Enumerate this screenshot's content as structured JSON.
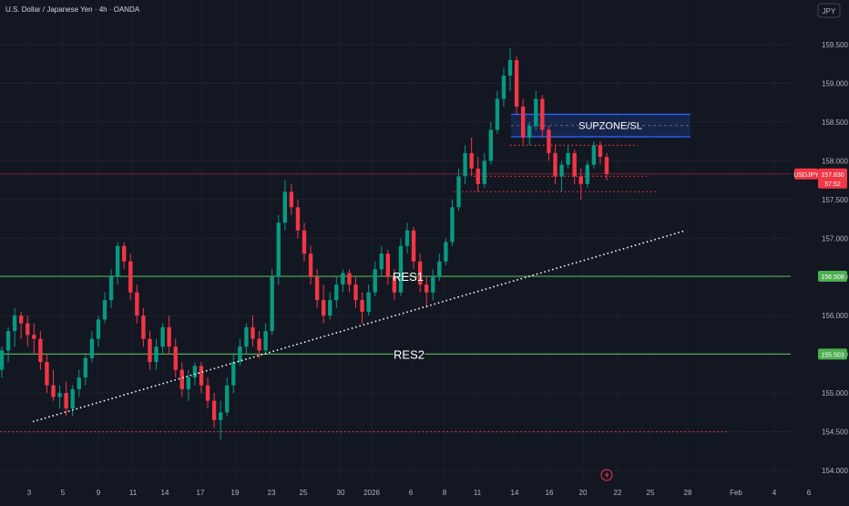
{
  "header": {
    "symbol_title": "U.S. Dollar / Japanese Yen · 4h · OANDA"
  },
  "currency_button": "JPY",
  "chart_data": {
    "type": "candlestick",
    "symbol": "USDJPY",
    "timeframe": "4h",
    "y_ticks": [
      "159.500",
      "159.000",
      "158.500",
      "158.000",
      "157.500",
      "157.000",
      "156.500",
      "156.000",
      "155.500",
      "155.000",
      "154.500",
      "154.000"
    ],
    "y_tick_values": [
      159.5,
      159.0,
      158.5,
      158.0,
      157.5,
      157.0,
      156.5,
      156.0,
      155.5,
      155.0,
      154.5,
      154.0
    ],
    "x_ticks": [
      "3",
      "5",
      "9",
      "11",
      "14",
      "17",
      "19",
      "23",
      "25",
      "30",
      "2026",
      "6",
      "8",
      "11",
      "14",
      "16",
      "20",
      "22",
      "25",
      "28",
      "Feb",
      "4",
      "6"
    ],
    "last_price": {
      "label": "USDJPY",
      "value": "157.830",
      "countdown": "57:52",
      "price": 157.83
    },
    "level_tags": [
      {
        "value": "156.508",
        "price": 156.508
      },
      {
        "value": "155.503",
        "price": 155.503
      }
    ],
    "annotations": {
      "res1": {
        "text": "RES1",
        "price": 156.508
      },
      "res2": {
        "text": "RES2",
        "price": 155.503
      },
      "supzone": {
        "text": "SUPZONE/SL",
        "price_top": 158.6,
        "price_bottom": 158.31
      }
    },
    "dotted_levels": [
      154.5,
      157.6,
      157.8,
      158.2
    ],
    "trendline": {
      "from": 154.63,
      "to": 157.1
    },
    "candles": [
      [
        155.3,
        155.6,
        155.2,
        155.55
      ],
      [
        155.55,
        155.85,
        155.4,
        155.8
      ],
      [
        155.8,
        156.1,
        155.6,
        156.0
      ],
      [
        156.0,
        156.05,
        155.7,
        155.9
      ],
      [
        155.9,
        156.0,
        155.6,
        155.75
      ],
      [
        155.75,
        155.9,
        155.5,
        155.7
      ],
      [
        155.7,
        155.8,
        155.3,
        155.4
      ],
      [
        155.4,
        155.5,
        155.0,
        155.1
      ],
      [
        155.1,
        155.3,
        154.9,
        154.95
      ],
      [
        154.95,
        155.1,
        154.8,
        155.0
      ],
      [
        155.0,
        155.15,
        154.7,
        154.8
      ],
      [
        154.8,
        155.1,
        154.7,
        155.05
      ],
      [
        155.05,
        155.3,
        154.95,
        155.2
      ],
      [
        155.2,
        155.5,
        155.1,
        155.45
      ],
      [
        155.45,
        155.8,
        155.4,
        155.7
      ],
      [
        155.7,
        156.0,
        155.6,
        155.95
      ],
      [
        155.95,
        156.3,
        155.9,
        156.2
      ],
      [
        156.2,
        156.6,
        156.1,
        156.5
      ],
      [
        156.5,
        156.95,
        156.4,
        156.9
      ],
      [
        156.9,
        156.95,
        156.6,
        156.7
      ],
      [
        156.7,
        156.8,
        156.2,
        156.3
      ],
      [
        156.3,
        156.4,
        155.9,
        156.0
      ],
      [
        156.0,
        156.1,
        155.6,
        155.7
      ],
      [
        155.7,
        155.8,
        155.3,
        155.4
      ],
      [
        155.4,
        155.7,
        155.3,
        155.6
      ],
      [
        155.6,
        155.9,
        155.5,
        155.85
      ],
      [
        155.85,
        156.0,
        155.5,
        155.6
      ],
      [
        155.6,
        155.7,
        155.2,
        155.3
      ],
      [
        155.3,
        155.4,
        154.95,
        155.05
      ],
      [
        155.05,
        155.3,
        154.9,
        155.2
      ],
      [
        155.2,
        155.4,
        155.1,
        155.35
      ],
      [
        155.35,
        155.4,
        155.0,
        155.1
      ],
      [
        155.1,
        155.2,
        154.8,
        154.9
      ],
      [
        154.9,
        155.0,
        154.55,
        154.65
      ],
      [
        154.65,
        154.9,
        154.4,
        154.75
      ],
      [
        154.75,
        155.2,
        154.7,
        155.1
      ],
      [
        155.1,
        155.5,
        155.0,
        155.4
      ],
      [
        155.4,
        155.7,
        155.35,
        155.6
      ],
      [
        155.6,
        155.9,
        155.5,
        155.85
      ],
      [
        155.85,
        156.0,
        155.6,
        155.7
      ],
      [
        155.7,
        155.8,
        155.45,
        155.55
      ],
      [
        155.55,
        155.9,
        155.5,
        155.8
      ],
      [
        155.8,
        156.6,
        155.75,
        156.5
      ],
      [
        156.5,
        157.3,
        156.4,
        157.2
      ],
      [
        157.2,
        157.75,
        157.1,
        157.6
      ],
      [
        157.6,
        157.7,
        157.3,
        157.4
      ],
      [
        157.4,
        157.5,
        157.0,
        157.1
      ],
      [
        157.1,
        157.2,
        156.7,
        156.8
      ],
      [
        156.8,
        156.9,
        156.4,
        156.5
      ],
      [
        156.5,
        156.6,
        156.1,
        156.2
      ],
      [
        156.2,
        156.4,
        155.9,
        156.0
      ],
      [
        156.0,
        156.3,
        155.95,
        156.2
      ],
      [
        156.2,
        156.5,
        156.1,
        156.4
      ],
      [
        156.4,
        156.6,
        156.3,
        156.55
      ],
      [
        156.55,
        156.6,
        156.3,
        156.4
      ],
      [
        156.4,
        156.5,
        156.1,
        156.2
      ],
      [
        156.2,
        156.3,
        155.9,
        156.05
      ],
      [
        156.05,
        156.4,
        156.0,
        156.3
      ],
      [
        156.3,
        156.7,
        156.25,
        156.6
      ],
      [
        156.6,
        156.9,
        156.5,
        156.8
      ],
      [
        156.8,
        156.85,
        156.4,
        156.5
      ],
      [
        156.5,
        156.6,
        156.2,
        156.3
      ],
      [
        156.3,
        157.0,
        156.25,
        156.9
      ],
      [
        156.9,
        157.2,
        156.8,
        157.1
      ],
      [
        157.1,
        157.15,
        156.6,
        156.7
      ],
      [
        156.7,
        156.8,
        156.3,
        156.4
      ],
      [
        156.4,
        156.5,
        156.1,
        156.3
      ],
      [
        156.3,
        156.6,
        156.2,
        156.5
      ],
      [
        156.5,
        156.8,
        156.45,
        156.7
      ],
      [
        156.7,
        157.0,
        156.65,
        156.95
      ],
      [
        156.95,
        157.5,
        156.9,
        157.4
      ],
      [
        157.4,
        157.9,
        157.35,
        157.8
      ],
      [
        157.8,
        158.2,
        157.7,
        158.1
      ],
      [
        158.1,
        158.3,
        157.8,
        157.9
      ],
      [
        157.9,
        158.05,
        157.6,
        157.7
      ],
      [
        157.7,
        158.1,
        157.65,
        158.0
      ],
      [
        158.0,
        158.5,
        157.95,
        158.4
      ],
      [
        158.4,
        158.9,
        158.35,
        158.8
      ],
      [
        158.8,
        159.2,
        158.7,
        159.1
      ],
      [
        159.1,
        159.45,
        158.9,
        159.3
      ],
      [
        159.3,
        159.35,
        158.6,
        158.7
      ],
      [
        158.7,
        158.8,
        158.2,
        158.3
      ],
      [
        158.3,
        158.5,
        158.2,
        158.45
      ],
      [
        158.45,
        158.9,
        158.4,
        158.8
      ],
      [
        158.8,
        158.85,
        158.3,
        158.4
      ],
      [
        158.4,
        158.45,
        158.0,
        158.1
      ],
      [
        158.1,
        158.2,
        157.7,
        157.8
      ],
      [
        157.8,
        158.0,
        157.6,
        157.95
      ],
      [
        157.95,
        158.2,
        157.9,
        158.1
      ],
      [
        158.1,
        158.15,
        157.7,
        157.8
      ],
      [
        157.8,
        157.9,
        157.5,
        157.7
      ],
      [
        157.7,
        158.0,
        157.65,
        157.95
      ],
      [
        157.95,
        158.25,
        157.9,
        158.2
      ],
      [
        158.2,
        158.25,
        157.95,
        158.05
      ],
      [
        158.05,
        158.1,
        157.75,
        157.83
      ]
    ]
  }
}
